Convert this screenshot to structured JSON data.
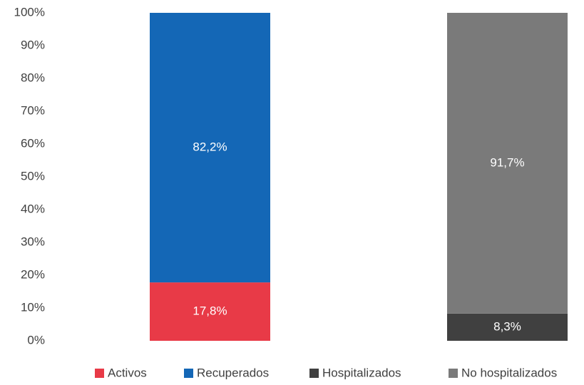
{
  "chart_data": {
    "type": "stacked_bar",
    "categories": [
      null,
      null
    ],
    "series": [
      {
        "name": "Activos",
        "color": "#e83a47",
        "values": [
          17.8,
          null
        ],
        "value_labels": [
          "17,8%",
          null
        ]
      },
      {
        "name": "Recuperados",
        "color": "#1467b6",
        "values": [
          82.2,
          null
        ],
        "value_labels": [
          "82,2%",
          null
        ]
      },
      {
        "name": "Hospitalizados",
        "color": "#404040",
        "values": [
          null,
          8.3
        ],
        "value_labels": [
          null,
          "8,3%"
        ]
      },
      {
        "name": "No hospitalizados",
        "color": "#7a7a7a",
        "values": [
          null,
          91.7
        ],
        "value_labels": [
          null,
          "91,7%"
        ]
      }
    ],
    "ylim": [
      0,
      100
    ],
    "yticks": [
      {
        "value": 0,
        "label": "0%"
      },
      {
        "value": 10,
        "label": "10%"
      },
      {
        "value": 20,
        "label": "20%"
      },
      {
        "value": 30,
        "label": "30%"
      },
      {
        "value": 40,
        "label": "40%"
      },
      {
        "value": 50,
        "label": "50%"
      },
      {
        "value": 60,
        "label": "60%"
      },
      {
        "value": 70,
        "label": "70%"
      },
      {
        "value": 80,
        "label": "80%"
      },
      {
        "value": 90,
        "label": "90%"
      },
      {
        "value": 100,
        "label": "100%"
      }
    ],
    "grid": false,
    "legend": "bottom"
  }
}
